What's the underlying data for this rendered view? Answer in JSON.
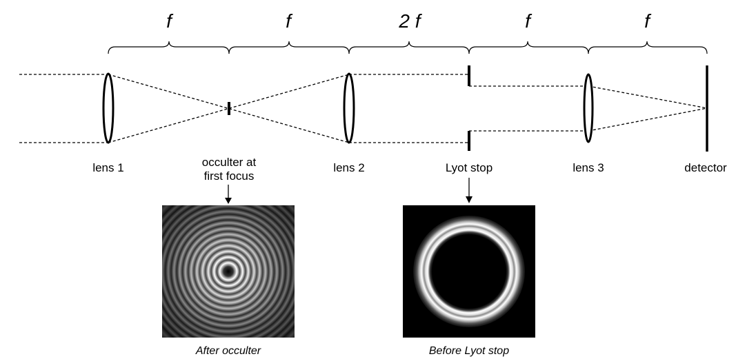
{
  "distances": [
    {
      "symbol": "f"
    },
    {
      "symbol": "f"
    },
    {
      "symbol": "2 f"
    },
    {
      "symbol": "f"
    },
    {
      "symbol": "f"
    }
  ],
  "components": {
    "lens1": "lens 1",
    "occulter_line1": "occulter at",
    "occulter_line2": "first focus",
    "lens2": "lens 2",
    "lyot": "Lyot stop",
    "lens3": "lens 3",
    "detector": "detector"
  },
  "images": {
    "after_occulter": "After occulter",
    "before_lyot": "Before Lyot stop"
  }
}
